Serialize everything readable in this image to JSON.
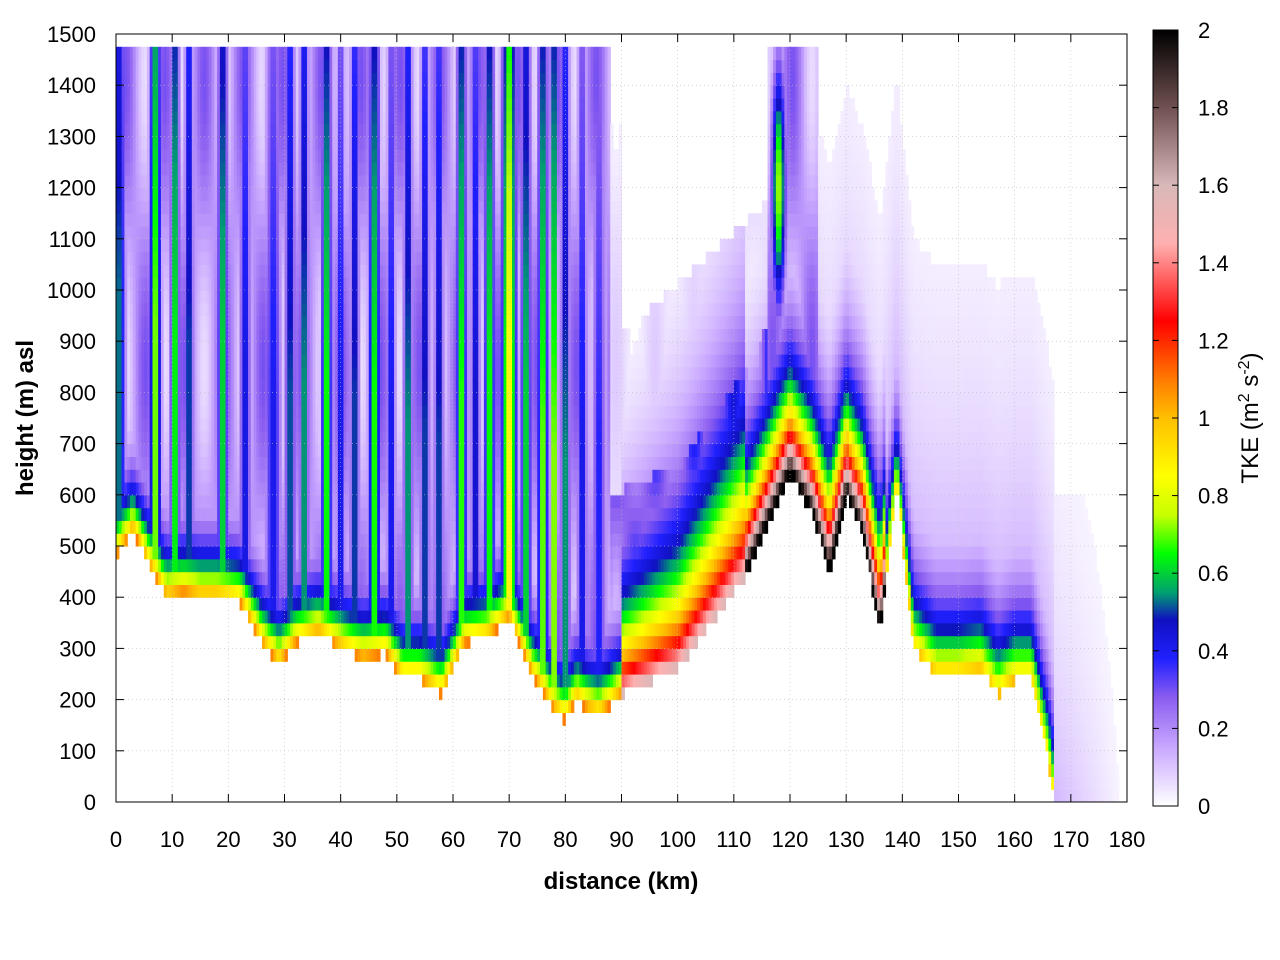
{
  "chart_data": {
    "type": "heatmap",
    "title": "",
    "xlabel": "distance (km)",
    "ylabel": "height (m) asl",
    "xlim": [
      0,
      180
    ],
    "ylim": [
      0,
      1500
    ],
    "x_ticks": [
      "0",
      "10",
      "20",
      "30",
      "40",
      "50",
      "60",
      "70",
      "80",
      "90",
      "100",
      "110",
      "120",
      "130",
      "140",
      "150",
      "160",
      "170",
      "180"
    ],
    "y_ticks": [
      "0",
      "100",
      "200",
      "300",
      "400",
      "500",
      "600",
      "700",
      "800",
      "900",
      "1000",
      "1100",
      "1200",
      "1300",
      "1400",
      "1500"
    ],
    "grid": true,
    "colorbar": {
      "label_main": "TKE (m",
      "label_sup1": "2",
      "label_mid": " s",
      "label_sup2": "-2",
      "label_end": ")",
      "range": [
        0,
        2
      ],
      "ticks": [
        "0",
        "0.2",
        "0.4",
        "0.6",
        "0.8",
        "1",
        "1.2",
        "1.4",
        "1.6",
        "1.8",
        "2"
      ],
      "colors": [
        {
          "v": 0.0,
          "c": "#ffffff"
        },
        {
          "v": 0.15,
          "c": "#c9a8ff"
        },
        {
          "v": 0.28,
          "c": "#8a5cf0"
        },
        {
          "v": 0.38,
          "c": "#2020ff"
        },
        {
          "v": 0.48,
          "c": "#1010c0"
        },
        {
          "v": 0.55,
          "c": "#00a070"
        },
        {
          "v": 0.65,
          "c": "#00ff00"
        },
        {
          "v": 0.75,
          "c": "#c8ff00"
        },
        {
          "v": 0.85,
          "c": "#ffff00"
        },
        {
          "v": 1.0,
          "c": "#ffbf00"
        },
        {
          "v": 1.1,
          "c": "#ff7a00"
        },
        {
          "v": 1.25,
          "c": "#ff0000"
        },
        {
          "v": 1.45,
          "c": "#ffb0b0"
        },
        {
          "v": 1.6,
          "c": "#d8b8b8"
        },
        {
          "v": 1.8,
          "c": "#705050"
        },
        {
          "v": 2.0,
          "c": "#000000"
        }
      ]
    },
    "terrain": {
      "x": [
        0,
        3,
        6,
        9,
        12,
        15,
        18,
        22,
        26,
        29,
        32,
        36,
        40,
        44,
        48,
        51,
        54,
        58,
        62,
        66,
        70,
        74,
        78,
        80,
        82,
        84,
        86,
        90,
        94,
        100,
        106,
        112,
        116,
        120,
        124,
        127,
        130,
        133,
        136,
        139,
        142,
        146,
        150,
        154,
        157,
        160,
        163,
        166,
        167
      ],
      "y": [
        480,
        530,
        460,
        400,
        410,
        400,
        400,
        390,
        310,
        270,
        310,
        330,
        300,
        280,
        290,
        240,
        240,
        210,
        310,
        320,
        360,
        250,
        180,
        160,
        200,
        180,
        170,
        210,
        230,
        260,
        350,
        440,
        540,
        640,
        560,
        450,
        600,
        520,
        330,
        620,
        300,
        250,
        250,
        260,
        210,
        240,
        240,
        80,
        0
      ]
    },
    "columns": [
      {
        "x": 0.5,
        "peak": 0.55,
        "width": 1.2
      },
      {
        "x": 7,
        "peak": 0.75,
        "width": 1.0
      },
      {
        "x": 10.5,
        "peak": 0.7,
        "width": 0.8
      },
      {
        "x": 13,
        "peak": 0.55,
        "width": 0.8
      },
      {
        "x": 19,
        "peak": 0.65,
        "width": 0.9
      },
      {
        "x": 23,
        "peak": 0.45,
        "width": 1.0
      },
      {
        "x": 28,
        "peak": 0.42,
        "width": 1.5
      },
      {
        "x": 31,
        "peak": 0.55,
        "width": 0.9
      },
      {
        "x": 33.5,
        "peak": 0.6,
        "width": 0.8
      },
      {
        "x": 37.5,
        "peak": 0.7,
        "width": 0.9
      },
      {
        "x": 40,
        "peak": 0.45,
        "width": 0.8
      },
      {
        "x": 42.5,
        "peak": 0.55,
        "width": 0.8
      },
      {
        "x": 46,
        "peak": 0.7,
        "width": 1.0
      },
      {
        "x": 49,
        "peak": 0.45,
        "width": 0.8
      },
      {
        "x": 52,
        "peak": 0.6,
        "width": 0.8
      },
      {
        "x": 55,
        "peak": 0.55,
        "width": 0.8
      },
      {
        "x": 57.5,
        "peak": 0.55,
        "width": 0.8
      },
      {
        "x": 61.5,
        "peak": 0.72,
        "width": 0.9
      },
      {
        "x": 64,
        "peak": 0.5,
        "width": 0.8
      },
      {
        "x": 66.5,
        "peak": 0.7,
        "width": 0.9
      },
      {
        "x": 70,
        "peak": 0.9,
        "width": 1.3
      },
      {
        "x": 73,
        "peak": 0.65,
        "width": 0.9
      },
      {
        "x": 76,
        "peak": 0.75,
        "width": 0.9
      },
      {
        "x": 78,
        "peak": 0.85,
        "width": 0.6
      },
      {
        "x": 80,
        "peak": 0.6,
        "width": 0.8
      },
      {
        "x": 83,
        "peak": 0.45,
        "width": 0.9
      },
      {
        "x": 86,
        "peak": 0.4,
        "width": 1.2
      },
      {
        "x": 118,
        "peak": 0.75,
        "width": 1.3
      }
    ]
  }
}
